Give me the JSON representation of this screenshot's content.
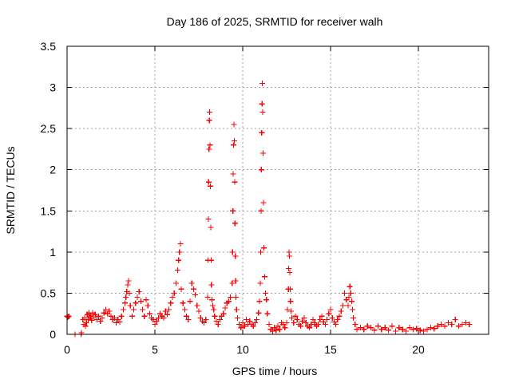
{
  "chart_data": {
    "type": "scatter",
    "title": "Day 186 of 2025, SRMTID for receiver walh",
    "xlabel": "GPS time / hours",
    "ylabel": "SRMTID / TECUs",
    "xlim": [
      0,
      24
    ],
    "ylim": [
      0,
      3.5
    ],
    "xticks": [
      0,
      5,
      10,
      15,
      20
    ],
    "xtick_labels": [
      "0",
      "5",
      "10",
      "15",
      "20"
    ],
    "yticks": [
      0,
      0.5,
      1,
      1.5,
      2,
      2.5,
      3,
      3.5
    ],
    "ytick_labels": [
      "0",
      "0.5",
      "1",
      "1.5",
      "2",
      "2.5",
      "3",
      "3.5"
    ],
    "grid": true,
    "marker": "+",
    "colors": {
      "series": "#ff0000",
      "frame": "#000000",
      "grid": "#a0a0a0",
      "background": "#ffffff"
    },
    "series": [
      {
        "name": "SRMTID",
        "x": [
          0.0,
          0.05,
          0.1,
          0.45,
          0.8,
          0.82,
          0.9,
          0.95,
          1.0,
          1.05,
          1.1,
          1.15,
          1.2,
          1.25,
          1.3,
          1.35,
          1.4,
          1.45,
          1.5,
          1.6,
          1.7,
          1.8,
          1.9,
          2.0,
          2.1,
          2.2,
          2.3,
          2.4,
          2.5,
          2.6,
          2.7,
          2.8,
          2.9,
          3.0,
          3.1,
          3.2,
          3.3,
          3.35,
          3.4,
          3.45,
          3.5,
          3.55,
          3.6,
          3.7,
          3.8,
          3.9,
          4.0,
          4.1,
          4.2,
          4.3,
          4.4,
          4.5,
          4.6,
          4.7,
          4.8,
          4.9,
          5.0,
          5.1,
          5.2,
          5.3,
          5.4,
          5.5,
          5.6,
          5.7,
          5.8,
          5.9,
          6.0,
          6.1,
          6.2,
          6.3,
          6.35,
          6.4,
          6.45,
          6.5,
          6.6,
          6.7,
          6.8,
          6.9,
          7.0,
          7.1,
          7.2,
          7.3,
          7.4,
          7.5,
          7.6,
          7.7,
          7.8,
          7.9,
          8.0,
          8.02,
          8.04,
          8.06,
          8.08,
          8.1,
          8.12,
          8.14,
          8.16,
          8.18,
          8.2,
          8.22,
          8.25,
          8.3,
          8.35,
          8.4,
          8.5,
          8.6,
          8.7,
          8.8,
          8.9,
          9.0,
          9.1,
          9.2,
          9.3,
          9.4,
          9.42,
          9.44,
          9.46,
          9.48,
          9.5,
          9.52,
          9.54,
          9.56,
          9.58,
          9.6,
          9.62,
          9.65,
          9.7,
          9.8,
          9.9,
          10.0,
          10.1,
          10.2,
          10.3,
          10.4,
          10.5,
          10.6,
          10.7,
          10.8,
          10.9,
          10.95,
          11.0,
          11.02,
          11.04,
          11.06,
          11.08,
          11.1,
          11.12,
          11.14,
          11.16,
          11.18,
          11.2,
          11.25,
          11.3,
          11.35,
          11.4,
          11.5,
          11.6,
          11.7,
          11.8,
          11.9,
          12.0,
          12.1,
          12.2,
          12.3,
          12.4,
          12.5,
          12.55,
          12.6,
          12.62,
          12.64,
          12.66,
          12.68,
          12.7,
          12.72,
          12.75,
          12.8,
          12.9,
          13.0,
          13.1,
          13.2,
          13.3,
          13.4,
          13.5,
          13.6,
          13.7,
          13.8,
          13.9,
          14.0,
          14.1,
          14.2,
          14.3,
          14.4,
          14.5,
          14.6,
          14.7,
          14.8,
          14.9,
          15.0,
          15.1,
          15.2,
          15.3,
          15.4,
          15.5,
          15.6,
          15.7,
          15.8,
          15.9,
          16.0,
          16.05,
          16.1,
          16.15,
          16.2,
          16.25,
          16.3,
          16.4,
          16.5,
          16.7,
          16.9,
          17.1,
          17.3,
          17.5,
          17.7,
          17.9,
          18.1,
          18.3,
          18.5,
          18.7,
          18.9,
          19.1,
          19.3,
          19.5,
          19.7,
          19.9,
          20.1,
          20.3,
          20.5,
          20.7,
          20.9,
          21.1,
          21.3,
          21.5,
          21.7,
          21.9,
          22.1,
          22.3,
          22.5,
          22.7,
          22.9
        ],
        "y": [
          0.22,
          0.21,
          0.22,
          0.0,
          0.0,
          0.02,
          0.18,
          0.12,
          0.2,
          0.1,
          0.14,
          0.24,
          0.18,
          0.26,
          0.2,
          0.22,
          0.17,
          0.26,
          0.2,
          0.24,
          0.18,
          0.22,
          0.16,
          0.2,
          0.26,
          0.3,
          0.25,
          0.28,
          0.22,
          0.18,
          0.2,
          0.14,
          0.18,
          0.15,
          0.22,
          0.3,
          0.38,
          0.45,
          0.52,
          0.6,
          0.65,
          0.5,
          0.35,
          0.22,
          0.3,
          0.38,
          0.45,
          0.52,
          0.4,
          0.3,
          0.22,
          0.42,
          0.35,
          0.25,
          0.2,
          0.18,
          0.12,
          0.16,
          0.2,
          0.25,
          0.22,
          0.2,
          0.28,
          0.24,
          0.3,
          0.38,
          0.45,
          0.5,
          0.62,
          0.78,
          0.9,
          1.0,
          1.1,
          0.55,
          0.38,
          0.3,
          0.22,
          0.18,
          0.4,
          0.62,
          0.55,
          0.48,
          0.35,
          0.28,
          0.2,
          0.16,
          0.14,
          0.18,
          0.45,
          0.9,
          1.4,
          1.85,
          2.25,
          2.6,
          2.7,
          2.3,
          1.8,
          1.3,
          0.9,
          0.6,
          0.42,
          0.35,
          0.3,
          0.22,
          0.16,
          0.12,
          0.18,
          0.22,
          0.25,
          0.32,
          0.38,
          0.4,
          0.45,
          0.62,
          1.0,
          1.5,
          1.95,
          2.3,
          2.55,
          2.35,
          1.85,
          1.35,
          0.95,
          0.65,
          0.45,
          0.3,
          0.2,
          0.12,
          0.08,
          0.14,
          0.1,
          0.18,
          0.12,
          0.16,
          0.12,
          0.1,
          0.14,
          0.18,
          0.26,
          0.4,
          0.62,
          1.0,
          1.5,
          2.0,
          2.45,
          2.8,
          3.05,
          2.7,
          2.2,
          1.6,
          1.05,
          0.7,
          0.5,
          0.42,
          0.25,
          0.12,
          0.06,
          0.04,
          0.08,
          0.05,
          0.1,
          0.06,
          0.14,
          0.12,
          0.08,
          0.14,
          0.3,
          0.55,
          0.8,
          1.0,
          0.95,
          0.75,
          0.55,
          0.4,
          0.28,
          0.2,
          0.14,
          0.22,
          0.18,
          0.12,
          0.1,
          0.16,
          0.2,
          0.14,
          0.1,
          0.08,
          0.12,
          0.18,
          0.14,
          0.1,
          0.12,
          0.18,
          0.22,
          0.15,
          0.12,
          0.18,
          0.25,
          0.3,
          0.2,
          0.15,
          0.12,
          0.18,
          0.22,
          0.28,
          0.35,
          0.5,
          0.42,
          0.35,
          0.45,
          0.58,
          0.5,
          0.4,
          0.3,
          0.2,
          0.12,
          0.06,
          0.08,
          0.06,
          0.1,
          0.08,
          0.05,
          0.1,
          0.06,
          0.08,
          0.05,
          0.1,
          0.04,
          0.08,
          0.06,
          0.04,
          0.08,
          0.06,
          0.07,
          0.05,
          0.04,
          0.06,
          0.08,
          0.07,
          0.1,
          0.12,
          0.1,
          0.14,
          0.12,
          0.18,
          0.1,
          0.12,
          0.14,
          0.12
        ]
      }
    ]
  }
}
